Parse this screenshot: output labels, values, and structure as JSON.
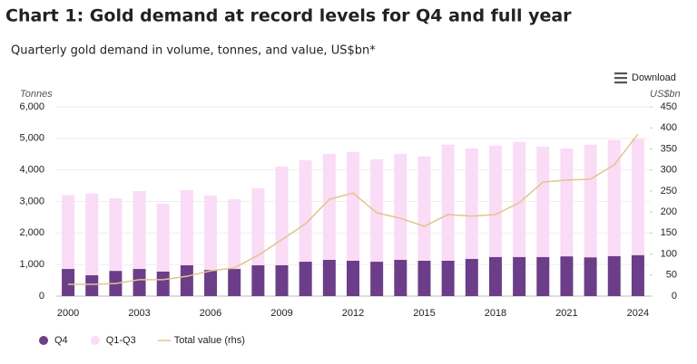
{
  "chart_data": {
    "type": "stacked-bar-line",
    "title": "Chart 1: Gold demand at record levels for Q4 and full year",
    "subtitle": "Quarterly gold demand in volume, tonnes, and value, US$bn*",
    "download_label": "Download",
    "y_label": "Tonnes",
    "y2_label": "US$bn",
    "categories": [
      "2000",
      null,
      null,
      "2003",
      null,
      null,
      "2006",
      null,
      null,
      "2009",
      null,
      null,
      "2012",
      null,
      null,
      "2015",
      null,
      null,
      "2018",
      null,
      null,
      "2021",
      null,
      null,
      "2024"
    ],
    "series": [
      {
        "name": "Q4",
        "color": "#6c3d88",
        "values": [
          860,
          660,
          800,
          860,
          780,
          980,
          830,
          860,
          980,
          980,
          1090,
          1150,
          1120,
          1090,
          1150,
          1120,
          1120,
          1180,
          1240,
          1240,
          1240,
          1260,
          1230,
          1270,
          1300
        ]
      },
      {
        "name": "Q1-Q3",
        "color": "#fadcf6",
        "values": [
          2340,
          2590,
          2300,
          2470,
          2150,
          2380,
          2360,
          2210,
          2440,
          3130,
          3220,
          3360,
          3450,
          3250,
          3360,
          3310,
          3680,
          3500,
          3530,
          3650,
          3500,
          3420,
          3570,
          3680,
          3680
        ]
      },
      {
        "name": "Total value (rhs)",
        "color": "#e2c48e",
        "axis": "y2",
        "values": [
          28,
          28,
          30,
          39,
          39,
          47,
          60,
          67,
          97,
          134,
          172,
          230,
          245,
          198,
          185,
          166,
          194,
          190,
          194,
          222,
          271,
          276,
          278,
          312,
          385
        ]
      }
    ],
    "ylim": [
      0,
      6000
    ],
    "yticks": [
      0,
      {
        "value": 1000,
        "label": "1,000"
      },
      {
        "value": 2000,
        "label": "2,000"
      },
      {
        "value": 3000,
        "label": "3,000"
      },
      {
        "value": 4000,
        "label": "4,000"
      },
      {
        "value": 5000,
        "label": "5,000"
      },
      {
        "value": 6000,
        "label": "6,000"
      }
    ],
    "y2lim": [
      0,
      450
    ],
    "y2ticks": [
      0,
      50,
      100,
      150,
      200,
      250,
      300,
      350,
      400,
      450
    ],
    "legend": "bottom-left"
  }
}
